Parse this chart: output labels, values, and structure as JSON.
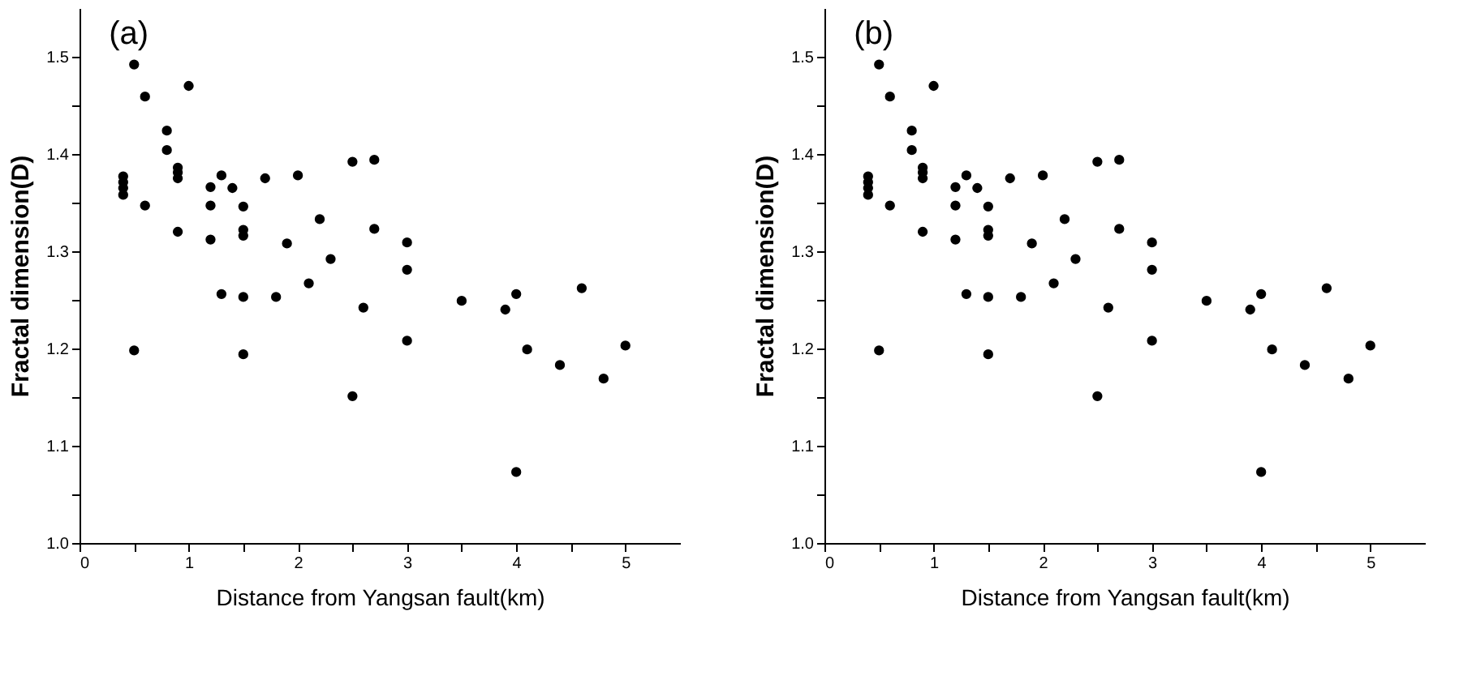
{
  "chart_data": [
    {
      "type": "scatter",
      "title": "(a)",
      "xlabel": "Distance from Yangsan fault(km)",
      "ylabel": "Fractal dimension(D)",
      "marker": "circle",
      "grid": false,
      "xlim": [
        0,
        5.5
      ],
      "ylim": [
        1.0,
        1.55
      ],
      "xticks": [
        0,
        {
          "value": 0.5,
          "label": null
        },
        1,
        {
          "value": 1.5,
          "label": null
        },
        2,
        {
          "value": 2.5,
          "label": null
        },
        3,
        {
          "value": 3.5,
          "label": null
        },
        4,
        {
          "value": 4.5,
          "label": null
        },
        5
      ],
      "yticks": [
        {
          "value": 1.0,
          "label": "1.0"
        },
        {
          "value": 1.05,
          "label": null
        },
        1.1,
        {
          "value": 1.15,
          "label": null
        },
        1.2,
        {
          "value": 1.25,
          "label": null
        },
        1.3,
        {
          "value": 1.35,
          "label": null
        },
        1.4,
        {
          "value": 1.45,
          "label": null
        },
        1.5
      ],
      "series": [
        {
          "color": "#000000",
          "x": [
            0.4,
            0.4,
            0.4,
            0.4,
            0.5,
            0.5,
            0.6,
            0.6,
            0.8,
            0.8,
            0.9,
            0.9,
            0.9,
            0.9,
            1.0,
            1.2,
            1.2,
            1.2,
            1.3,
            1.3,
            1.4,
            1.5,
            1.5,
            1.5,
            1.5,
            1.5,
            1.7,
            1.8,
            1.9,
            2.0,
            2.1,
            2.2,
            2.3,
            2.5,
            2.5,
            2.6,
            2.7,
            2.7,
            3.0,
            3.0,
            3.0,
            3.5,
            3.9,
            4.0,
            4.0,
            4.1,
            4.4,
            4.6,
            4.8,
            5.0
          ],
          "values": [
            1.377,
            1.371,
            1.365,
            1.358,
            1.492,
            1.198,
            1.459,
            1.347,
            1.424,
            1.404,
            1.386,
            1.381,
            1.375,
            1.32,
            1.47,
            1.366,
            1.347,
            1.312,
            1.378,
            1.256,
            1.365,
            1.346,
            1.322,
            1.316,
            1.253,
            1.194,
            1.375,
            1.253,
            1.308,
            1.378,
            1.267,
            1.333,
            1.292,
            1.392,
            1.151,
            1.242,
            1.394,
            1.323,
            1.309,
            1.281,
            1.208,
            1.249,
            1.24,
            1.256,
            1.073,
            1.199,
            1.183,
            1.262,
            1.169,
            1.203
          ]
        }
      ]
    },
    {
      "type": "scatter",
      "title": "(b)",
      "xlabel": "Distance from Yangsan fault(km)",
      "ylabel": "Fractal dimension(D)",
      "marker": "circle",
      "grid": false,
      "xlim": [
        0,
        5.5
      ],
      "ylim": [
        1.0,
        1.55
      ],
      "xticks": [
        0,
        {
          "value": 0.5,
          "label": null
        },
        1,
        {
          "value": 1.5,
          "label": null
        },
        2,
        {
          "value": 2.5,
          "label": null
        },
        3,
        {
          "value": 3.5,
          "label": null
        },
        4,
        {
          "value": 4.5,
          "label": null
        },
        5
      ],
      "yticks": [
        {
          "value": 1.0,
          "label": "1.0"
        },
        {
          "value": 1.05,
          "label": null
        },
        1.1,
        {
          "value": 1.15,
          "label": null
        },
        1.2,
        {
          "value": 1.25,
          "label": null
        },
        1.3,
        {
          "value": 1.35,
          "label": null
        },
        1.4,
        {
          "value": 1.45,
          "label": null
        },
        1.5
      ],
      "series": [
        {
          "color": "#000000",
          "x": [
            0.4,
            0.4,
            0.4,
            0.4,
            0.5,
            0.5,
            0.6,
            0.6,
            0.8,
            0.8,
            0.9,
            0.9,
            0.9,
            0.9,
            1.0,
            1.2,
            1.2,
            1.2,
            1.3,
            1.3,
            1.4,
            1.5,
            1.5,
            1.5,
            1.5,
            1.5,
            1.7,
            1.8,
            1.9,
            2.0,
            2.1,
            2.2,
            2.3,
            2.5,
            2.5,
            2.6,
            2.7,
            2.7,
            3.0,
            3.0,
            3.0,
            3.5,
            3.9,
            4.0,
            4.0,
            4.1,
            4.4,
            4.6,
            4.8,
            5.0
          ],
          "values": [
            1.377,
            1.371,
            1.365,
            1.358,
            1.492,
            1.198,
            1.459,
            1.347,
            1.424,
            1.404,
            1.386,
            1.381,
            1.375,
            1.32,
            1.47,
            1.366,
            1.347,
            1.312,
            1.378,
            1.256,
            1.365,
            1.346,
            1.322,
            1.316,
            1.253,
            1.194,
            1.375,
            1.253,
            1.308,
            1.378,
            1.267,
            1.333,
            1.292,
            1.392,
            1.151,
            1.242,
            1.394,
            1.323,
            1.309,
            1.281,
            1.208,
            1.249,
            1.24,
            1.256,
            1.073,
            1.199,
            1.183,
            1.262,
            1.169,
            1.203
          ]
        }
      ]
    }
  ]
}
